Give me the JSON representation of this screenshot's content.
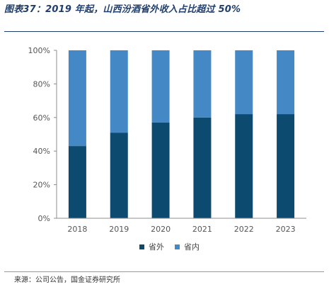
{
  "header": {
    "title": "图表37：2019 年起，山西汾酒省外收入占比超过 50%"
  },
  "footer": {
    "source": "来源：公司公告，国金证券研究所"
  },
  "colors": {
    "province_outside": "#0d4a6f",
    "province_inside": "#4488c5"
  },
  "chart_data": {
    "type": "bar",
    "stacked": true,
    "categories": [
      "2018",
      "2019",
      "2020",
      "2021",
      "2022",
      "2023"
    ],
    "series": [
      {
        "name": "省外",
        "values": [
          43,
          51,
          57,
          60,
          62,
          62
        ]
      },
      {
        "name": "省内",
        "values": [
          57,
          49,
          43,
          40,
          38,
          38
        ]
      }
    ],
    "ylim": [
      0,
      100
    ],
    "yticks": [
      "0%",
      "20%",
      "40%",
      "60%",
      "80%",
      "100%"
    ],
    "legend_position": "bottom",
    "grid": false
  }
}
